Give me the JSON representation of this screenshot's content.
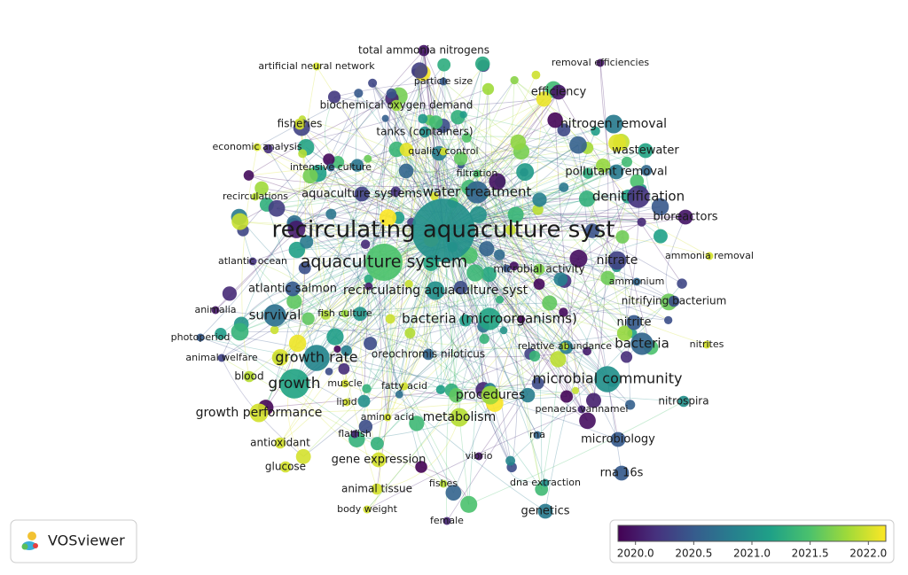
{
  "nodes": [
    {
      "label": "total ammonia nitrogens",
      "score": 2020.0
    },
    {
      "label": "removal efficiencies",
      "score": 2020.0
    },
    {
      "label": "artificial neural network",
      "score": 2022.0
    },
    {
      "label": "particle size",
      "score": 2020.5
    },
    {
      "label": "efficiency",
      "score": 2020.0
    },
    {
      "label": "biochemical oxygen demand",
      "score": 2021.8
    },
    {
      "label": "fisheries",
      "score": 2022.0
    },
    {
      "label": "nitrogen removal",
      "score": 2020.8
    },
    {
      "label": "tanks (containers)",
      "score": 2021.0
    },
    {
      "label": "economic analysis",
      "score": 2022.0
    },
    {
      "label": "quality control",
      "score": 2022.0
    },
    {
      "label": "wastewater",
      "score": 2021.2
    },
    {
      "label": "intensive culture",
      "score": 2020.6
    },
    {
      "label": "filtration",
      "score": 2021.5
    },
    {
      "label": "pollutant removal",
      "score": 2020.8
    },
    {
      "label": "recirculations",
      "score": 2021.9
    },
    {
      "label": "aquaculture systems",
      "score": 2020.3
    },
    {
      "label": "water treatment",
      "score": 2020.6
    },
    {
      "label": "denitrification",
      "score": 2020.2
    },
    {
      "label": "bioreactors",
      "score": 2020.0
    },
    {
      "label": "recirculating aquaculture syst",
      "score": 2021.0
    },
    {
      "label": "atlantic ocean",
      "score": 2020.2
    },
    {
      "label": "aquaculture system",
      "score": 2021.5
    },
    {
      "label": "ammonia removal",
      "score": 2022.0
    },
    {
      "label": "nitrate",
      "score": 2020.3
    },
    {
      "label": "microbial activity",
      "score": 2021.7
    },
    {
      "label": "ammonium",
      "score": 2020.6
    },
    {
      "label": "atlantic salmon",
      "score": 2020.5
    },
    {
      "label": "recirculating aquaculture syst",
      "score": 2021.0
    },
    {
      "label": "nitrifying bacterium",
      "score": 2020.4
    },
    {
      "label": "animalia",
      "score": 2020.0
    },
    {
      "label": "survival",
      "score": 2020.7
    },
    {
      "label": "fish culture",
      "score": 2021.8
    },
    {
      "label": "bacteria (microorganisms)",
      "score": 2021.2
    },
    {
      "label": "nitrite",
      "score": 2020.5
    },
    {
      "label": "photoperiod",
      "score": 2020.5
    },
    {
      "label": "relative abundance",
      "score": 2021.9
    },
    {
      "label": "bacteria",
      "score": 2020.6
    },
    {
      "label": "nitrites",
      "score": 2022.0
    },
    {
      "label": "animal welfare",
      "score": 2020.3
    },
    {
      "label": "growth rate",
      "score": 2020.9
    },
    {
      "label": "oreochromis niloticus",
      "score": 2020.6
    },
    {
      "label": "blood",
      "score": 2021.9
    },
    {
      "label": "microbial community",
      "score": 2021.0
    },
    {
      "label": "growth",
      "score": 2021.2
    },
    {
      "label": "muscle",
      "score": 2022.0
    },
    {
      "label": "fatty acid",
      "score": 2022.0
    },
    {
      "label": "procedures",
      "score": 2021.8
    },
    {
      "label": "nitrospira",
      "score": 2021.0
    },
    {
      "label": "lipid",
      "score": 2022.0
    },
    {
      "label": "growth performance",
      "score": 2022.0
    },
    {
      "label": "penaeus vannamei",
      "score": 2020.1
    },
    {
      "label": "amino acid",
      "score": 2022.0
    },
    {
      "label": "metabolism",
      "score": 2021.9
    },
    {
      "label": "flatfish",
      "score": 2020.1
    },
    {
      "label": "rna",
      "score": 2020.6
    },
    {
      "label": "antioxidant",
      "score": 2022.0
    },
    {
      "label": "microbiology",
      "score": 2020.5
    },
    {
      "label": "vibrio",
      "score": 2020.0
    },
    {
      "label": "gene expression",
      "score": 2022.0
    },
    {
      "label": "glucose",
      "score": 2022.0
    },
    {
      "label": "rna 16s",
      "score": 2020.5
    },
    {
      "label": "dna extraction",
      "score": 2021.0
    },
    {
      "label": "animal tissue",
      "score": 2022.0
    },
    {
      "label": "fishes",
      "score": 2021.9
    },
    {
      "label": "body weight",
      "score": 2022.0
    },
    {
      "label": "female",
      "score": 2020.1
    },
    {
      "label": "genetics",
      "score": 2020.8
    }
  ],
  "scale": {
    "range": [
      2019.85,
      2022.15
    ],
    "colormap": [
      "#440154",
      "#46327e",
      "#365c8d",
      "#277f8e",
      "#1fa187",
      "#4ac16d",
      "#a0da39",
      "#fde725"
    ],
    "ticks": [
      {
        "value": 2020,
        "label": "2020.0"
      },
      {
        "value": 2020.5,
        "label": "2020.5"
      },
      {
        "value": 2021,
        "label": "2021.0"
      },
      {
        "value": 2021.5,
        "label": "2021.5"
      },
      {
        "value": 2022,
        "label": "2022.0"
      }
    ]
  },
  "brand": "VOSviewer"
}
